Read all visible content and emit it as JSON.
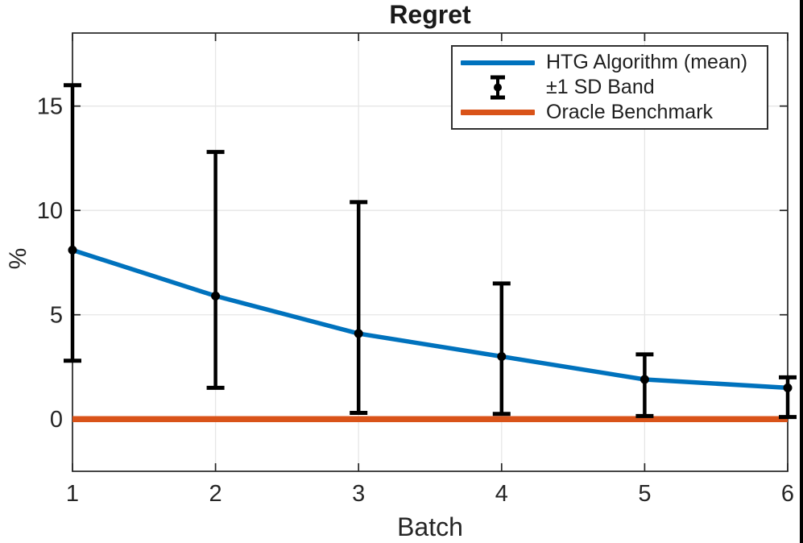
{
  "chart_data": {
    "type": "line",
    "title": "Regret",
    "xlabel": "Batch",
    "ylabel": "%",
    "x": [
      1,
      2,
      3,
      4,
      5,
      6
    ],
    "series": [
      {
        "name": "HTG Algorithm (mean)",
        "color": "#0072BD",
        "marker": "filled-circle",
        "values": [
          8.1,
          5.9,
          4.1,
          3.0,
          1.9,
          1.5
        ]
      },
      {
        "name": "Oracle Benchmark",
        "color": "#D95319",
        "marker": "none",
        "values": [
          0,
          0,
          0,
          0,
          0,
          0
        ]
      }
    ],
    "error_bars": {
      "name": "±1 SD Band",
      "color": "#000000",
      "attached_to": "HTG Algorithm (mean)",
      "upper": [
        16.0,
        12.8,
        10.4,
        6.5,
        3.1,
        2.0
      ],
      "lower": [
        2.8,
        1.5,
        0.3,
        0.25,
        0.15,
        0.1
      ]
    },
    "xlim": [
      1,
      6
    ],
    "ylim": [
      -2.5,
      18.5
    ],
    "xticks": [
      1,
      2,
      3,
      4,
      5,
      6
    ],
    "yticks": [
      0,
      5,
      10,
      15
    ],
    "grid": true,
    "grid_color": "#e6e6e6",
    "axis_color": "#262626",
    "legend": {
      "position": "top-right",
      "items": [
        "HTG Algorithm (mean)",
        "±1 SD Band",
        "Oracle Benchmark"
      ]
    }
  }
}
